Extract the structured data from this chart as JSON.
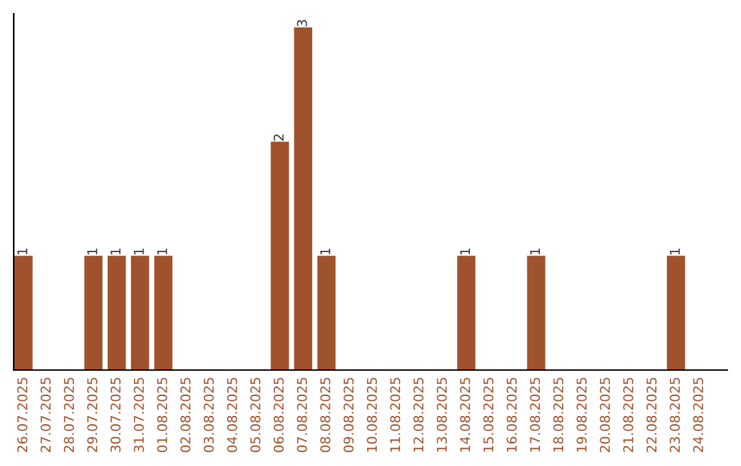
{
  "chart_data": {
    "type": "bar",
    "categories": [
      "26.07.2025",
      "27.07.2025",
      "28.07.2025",
      "29.07.2025",
      "30.07.2025",
      "31.07.2025",
      "01.08.2025",
      "02.08.2025",
      "03.08.2025",
      "04.08.2025",
      "05.08.2025",
      "06.08.2025",
      "07.08.2025",
      "08.08.2025",
      "09.08.2025",
      "10.08.2025",
      "11.08.2025",
      "12.08.2025",
      "13.08.2025",
      "14.08.2025",
      "15.08.2025",
      "16.08.2025",
      "17.08.2025",
      "18.08.2025",
      "19.08.2025",
      "20.08.2025",
      "21.08.2025",
      "22.08.2025",
      "23.08.2025",
      "24.08.2025"
    ],
    "values": [
      1,
      0,
      0,
      1,
      1,
      1,
      1,
      0,
      0,
      0,
      0,
      2,
      3,
      1,
      0,
      0,
      0,
      0,
      0,
      1,
      0,
      0,
      1,
      0,
      0,
      0,
      0,
      0,
      1,
      0
    ],
    "color": "#a0522d",
    "value_labels": [
      "1",
      null,
      null,
      "1",
      "1",
      "1",
      "1",
      null,
      null,
      null,
      null,
      "2",
      "3",
      "1",
      null,
      null,
      null,
      null,
      null,
      "1",
      null,
      null,
      "1",
      null,
      null,
      null,
      null,
      null,
      "1",
      null
    ],
    "grid": false,
    "tick_labels": "x"
  }
}
